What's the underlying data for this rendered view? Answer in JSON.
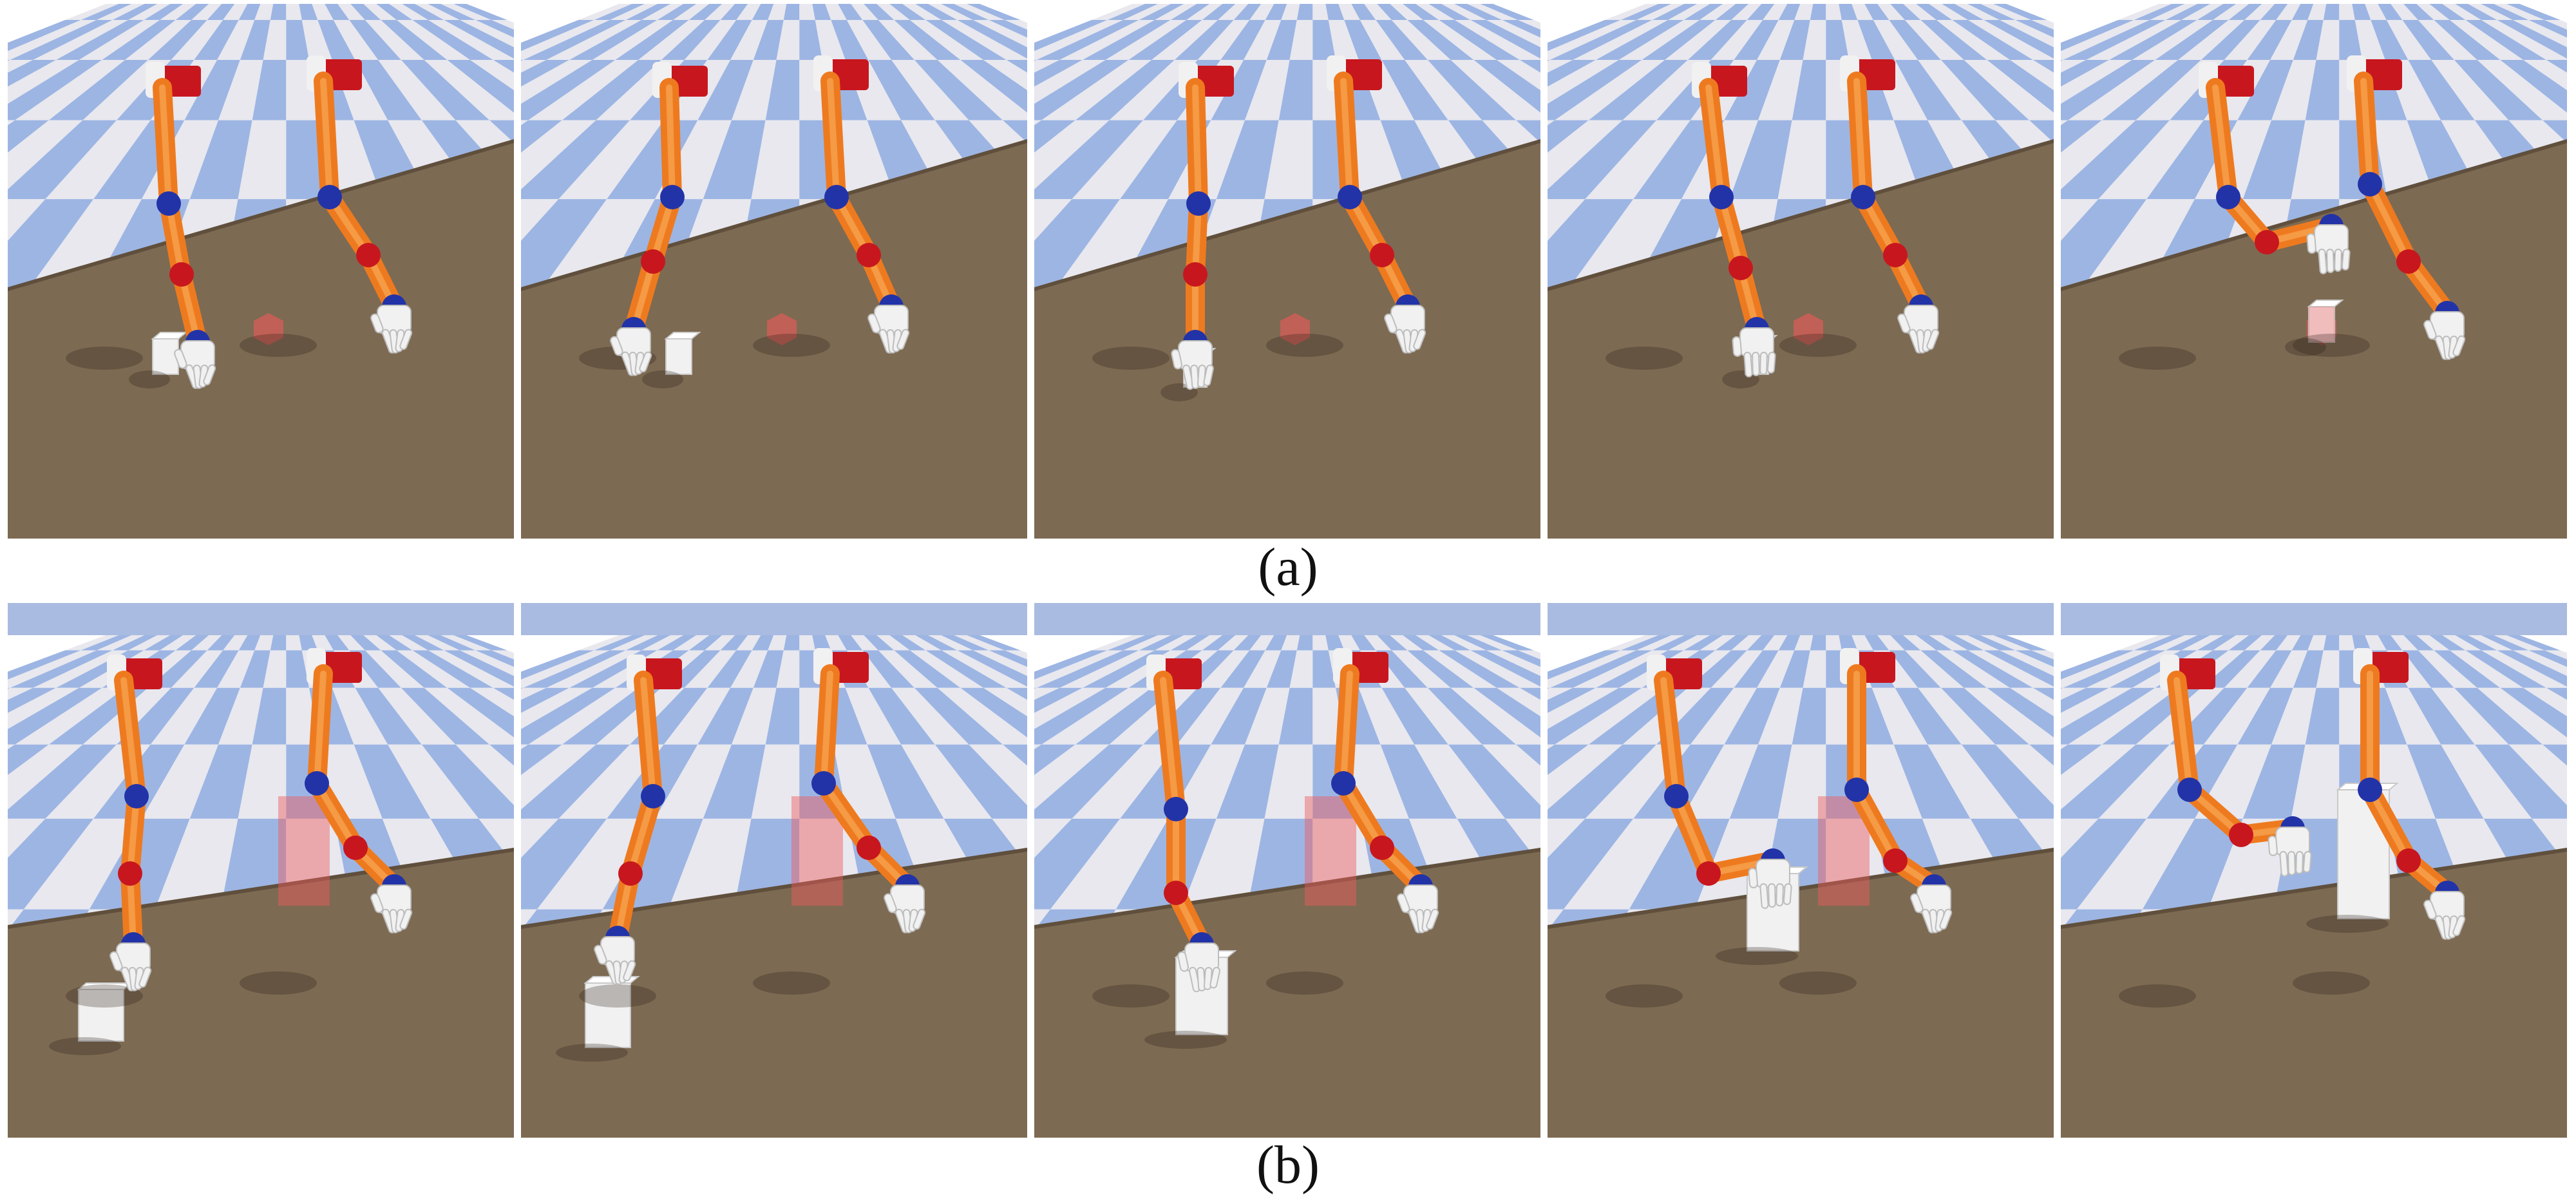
{
  "figure": {
    "panels": [
      {
        "caption": "(a)",
        "task": "small-cube",
        "frames": [
          {
            "step": 1,
            "grip": "open",
            "object": "on-table",
            "target_visible": true
          },
          {
            "step": 2,
            "grip": "open",
            "object": "on-table",
            "target_visible": true
          },
          {
            "step": 3,
            "grip": "closing",
            "object": "grasped",
            "target_visible": true
          },
          {
            "step": 4,
            "grip": "closed",
            "object": "grasped",
            "target_visible": true
          },
          {
            "step": 5,
            "grip": "closed",
            "object": "at-target",
            "target_visible": true
          }
        ]
      },
      {
        "caption": "(b)",
        "task": "tall-block",
        "frames": [
          {
            "step": 1,
            "grip": "open",
            "object": "on-table",
            "target_visible": true
          },
          {
            "step": 2,
            "grip": "open",
            "object": "on-table",
            "target_visible": true
          },
          {
            "step": 3,
            "grip": "closing",
            "object": "grasped",
            "target_visible": true
          },
          {
            "step": 4,
            "grip": "closed",
            "object": "grasped",
            "target_visible": true
          },
          {
            "step": 5,
            "grip": "closed",
            "object": "at-target",
            "target_visible": false
          }
        ]
      }
    ],
    "colors": {
      "sky": "#a9bbe0",
      "floor_blue": "#9db5e3",
      "floor_white": "#e8e8ee",
      "table": "#7d6a52",
      "arm_orange": "#ee7a1f",
      "joint_blue": "#2233a8",
      "joint_red": "#c8161e",
      "hand_white": "#f1f1f1",
      "target_red": "#ef5a5a"
    }
  }
}
